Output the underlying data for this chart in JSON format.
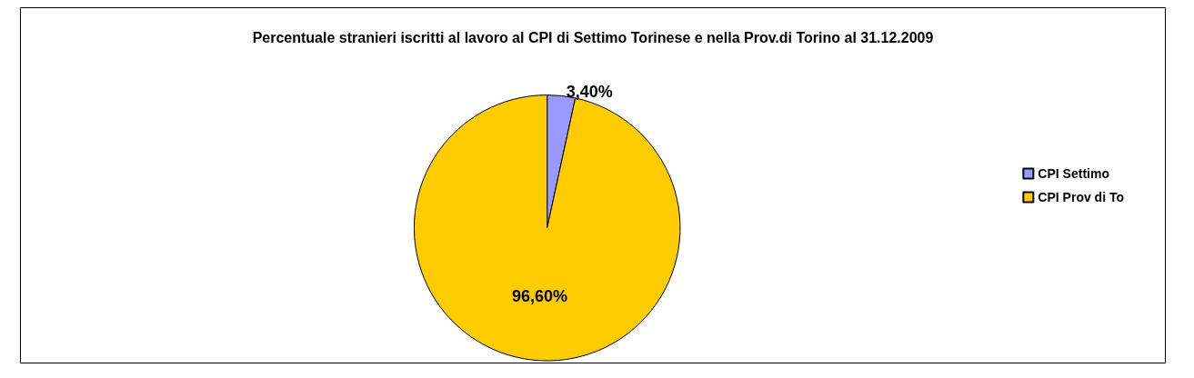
{
  "chart_data": {
    "type": "pie",
    "title": "Percentuale stranieri iscritti al lavoro al CPI di Settimo Torinese e nella Prov.di Torino al 31.12.2009",
    "categories": [
      "CPI Settimo",
      "CPI Prov di To"
    ],
    "values": [
      3.4,
      96.6
    ],
    "colors": [
      "#9999ff",
      "#ffcc00"
    ],
    "value_labels": [
      "3,40%",
      "96,60%"
    ],
    "legend": "right"
  }
}
